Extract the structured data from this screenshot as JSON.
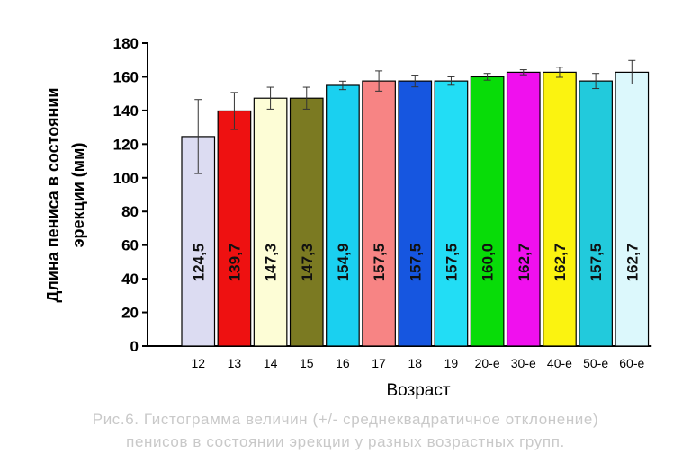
{
  "chart_data": {
    "type": "bar",
    "xlabel": "Возраст",
    "ylabel_lines": [
      "Длина пениса в состоянии",
      "эрекции (мм)"
    ],
    "ylim": [
      0,
      180
    ],
    "yticks": [
      "0",
      "20",
      "40",
      "60",
      "80",
      "100",
      "120",
      "140",
      "160",
      "180"
    ],
    "grid": false,
    "categories": [
      "12",
      "13",
      "14",
      "15",
      "16",
      "17",
      "18",
      "19",
      "20-е",
      "30-е",
      "40-е",
      "50-е",
      "60-е"
    ],
    "values": [
      124.5,
      139.7,
      147.3,
      147.3,
      154.9,
      157.5,
      157.5,
      157.5,
      160.0,
      162.7,
      162.7,
      157.5,
      162.7
    ],
    "value_labels": [
      "124,5",
      "139,7",
      "147,3",
      "147,3",
      "154,9",
      "157,5",
      "157,5",
      "157,5",
      "160,0",
      "162,7",
      "162,7",
      "157,5",
      "162,7"
    ],
    "errors": [
      22,
      11,
      6.5,
      6.5,
      2.5,
      6,
      3.5,
      2.5,
      2,
      1.5,
      3,
      4.5,
      7
    ],
    "colors": [
      "#dcdcf2",
      "#ee1111",
      "#fdfdd6",
      "#7b7a22",
      "#1ad0f0",
      "#f78484",
      "#1656e0",
      "#22ddf5",
      "#08dc08",
      "#f010ee",
      "#fbf310",
      "#22cadc",
      "#dcf8fc"
    ]
  },
  "caption": {
    "line1": "Рис.6. Гистограмма величин (+/- среднеквадратичное отклонение)",
    "line2": "пенисов в состоянии эрекции у разных возрастных групп."
  }
}
